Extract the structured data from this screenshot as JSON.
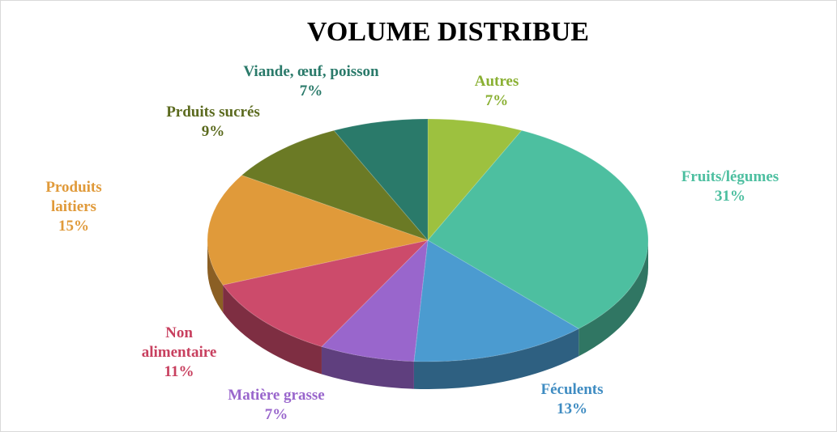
{
  "chart_data": {
    "type": "pie",
    "title": "VOLUME DISTRIBUE",
    "categories": [
      "Autres",
      "Fruits/légumes",
      "Féculents",
      "Matière grasse",
      "Non alimentaire",
      "Produits laitiers",
      "Prduits sucrés",
      "Viande, œuf, poisson"
    ],
    "values": [
      7,
      31,
      13,
      7,
      11,
      15,
      9,
      7
    ],
    "value_labels": [
      "7%",
      "31%",
      "13%",
      "7%",
      "11%",
      "15%",
      "9%",
      "7%"
    ],
    "colors": [
      "#9dc13f",
      "#4dbfa0",
      "#4b9bd0",
      "#9966cc",
      "#cc4b6b",
      "#e09a3a",
      "#6b7a25",
      "#2a7a6a"
    ]
  }
}
